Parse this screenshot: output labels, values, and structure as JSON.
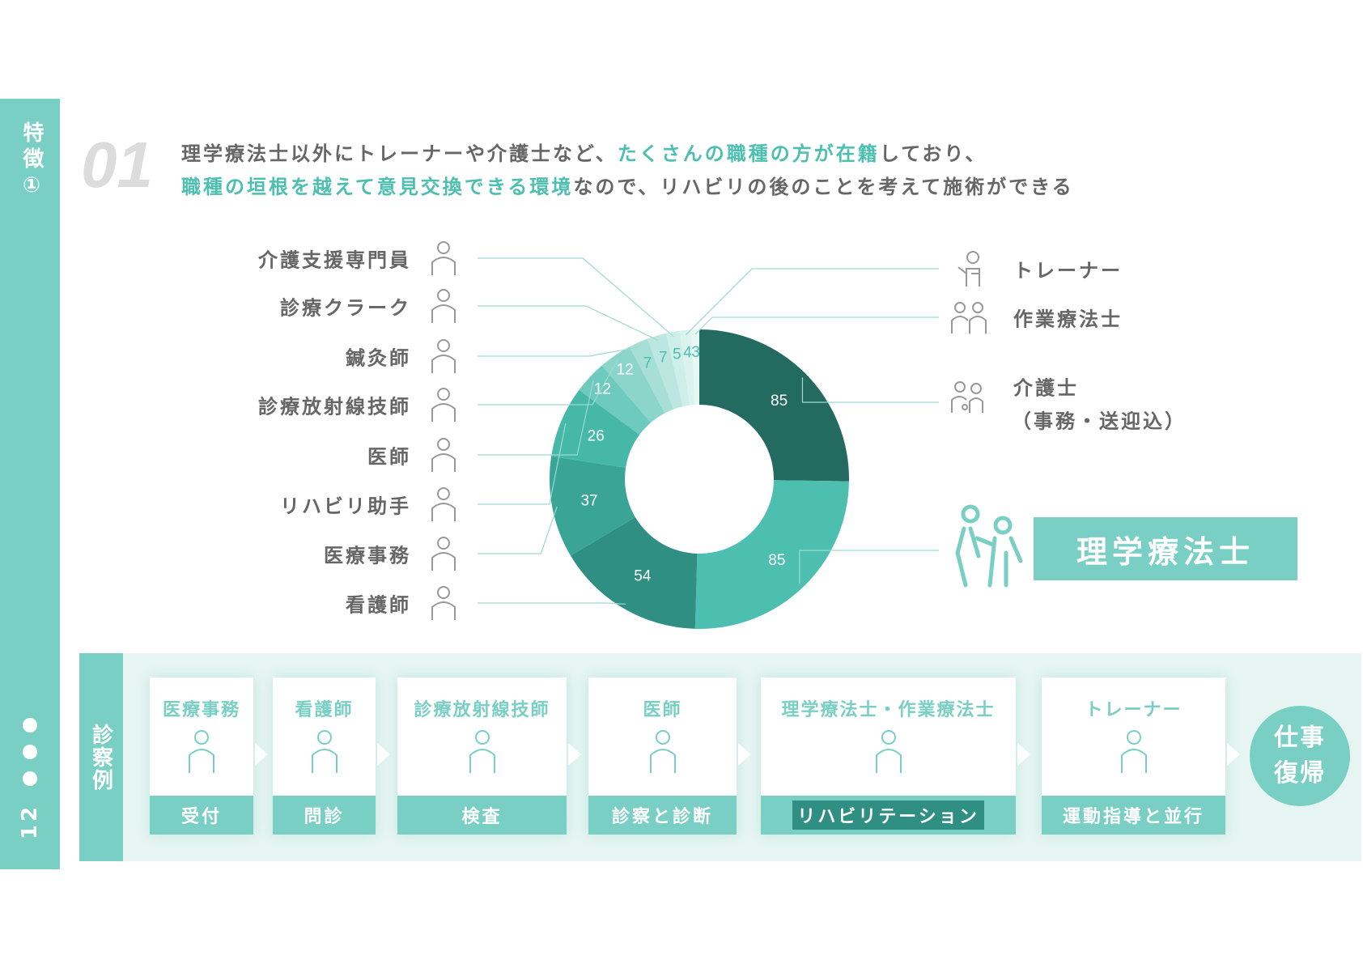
{
  "sidebar": {
    "feature_label": "特徴①",
    "page_number": "12"
  },
  "header": {
    "number": "01",
    "line1_a": "理学療法士以外にトレーナーや介護士など、",
    "line1_b": "たくさんの職種の方が在籍",
    "line1_c": "しており、",
    "line2_a": "職種の垣根を越えて意見交換できる環境",
    "line2_b": "なので、リハビリの後のことを考えて施術ができる"
  },
  "colors": {
    "accent": "#79cfc3",
    "teal": "#4cbfb0",
    "dark": "#236b60",
    "text": "#666666"
  },
  "chart_data": {
    "type": "pie",
    "donut": true,
    "slices": [
      {
        "label": "介護士（事務・送迎込）",
        "value": 85,
        "color": "#236b60",
        "icon": "caregiver-icon"
      },
      {
        "label": "理学療法士",
        "value": 85,
        "color": "#4cbfb0",
        "icon": "physical-therapist-icon"
      },
      {
        "label": "看護師",
        "value": 54,
        "color": "#2f8f82",
        "icon": "nurse-icon"
      },
      {
        "label": "医療事務",
        "value": 37,
        "color": "#3aa596",
        "icon": "medical-clerk-icon"
      },
      {
        "label": "リハビリ助手",
        "value": 26,
        "color": "#45b8a8",
        "icon": "rehab-assistant-icon"
      },
      {
        "label": "医師",
        "value": 12,
        "color": "#6fcabe",
        "icon": "doctor-icon"
      },
      {
        "label": "診療放射線技師",
        "value": 12,
        "color": "#8bd5cb",
        "icon": "radiology-icon"
      },
      {
        "label": "鍼灸師",
        "value": 7,
        "color": "#a7dfd7",
        "icon": "acupuncture-icon"
      },
      {
        "label": "診療クラーク",
        "value": 7,
        "color": "#bce7e1",
        "icon": "clerk-icon"
      },
      {
        "label": "介護支援専門員",
        "value": 5,
        "color": "#cdeee9",
        "icon": "care-manager-icon"
      },
      {
        "label": "トレーナー",
        "value": 4,
        "color": "#dbf3ef",
        "icon": "trainer-icon"
      },
      {
        "label": "作業療法士",
        "value": 3,
        "color": "#e7f7f4",
        "icon": "occupational-therapist-icon"
      }
    ],
    "left_labels": [
      "介護支援専門員",
      "診療クラーク",
      "鍼灸師",
      "診療放射線技師",
      "医師",
      "リハビリ助手",
      "医療事務",
      "看護師"
    ],
    "right_labels": [
      "トレーナー",
      "作業療法士",
      "介護士",
      "（事務・送迎込）"
    ],
    "highlight_label": "理学療法士"
  },
  "flow": {
    "title": "診察例",
    "steps": [
      {
        "role": "医療事務",
        "action": "受付"
      },
      {
        "role": "看護師",
        "action": "問診"
      },
      {
        "role": "診療放射線技師",
        "action": "検査"
      },
      {
        "role": "医師",
        "action": "診察と診断"
      },
      {
        "role": "理学療法士・作業療法士",
        "action": "リハビリテーション"
      },
      {
        "role": "トレーナー",
        "action": "運動指導と並行"
      }
    ],
    "goal": "仕事復帰"
  }
}
